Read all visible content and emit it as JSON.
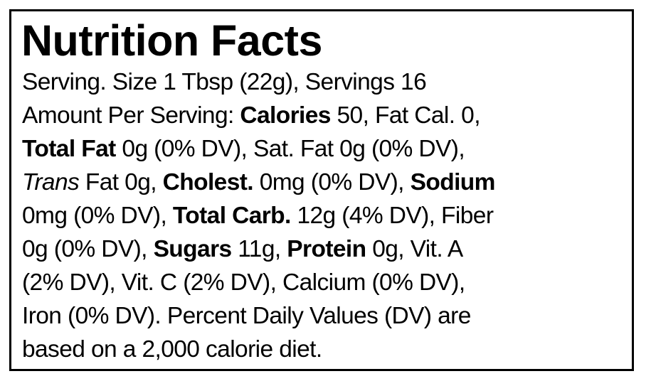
{
  "panel": {
    "title": "Nutrition Facts",
    "lines": [
      [
        {
          "text": "Serving. Size 1 Tbsp (22g), Servings 16",
          "style": "n"
        }
      ],
      [
        {
          "text": "Amount Per Serving: ",
          "style": "n"
        },
        {
          "text": "Calories",
          "style": "b"
        },
        {
          "text": " 50, Fat Cal. 0,",
          "style": "n"
        }
      ],
      [
        {
          "text": "Total Fat",
          "style": "b"
        },
        {
          "text": " 0g (0% DV), Sat. Fat 0g (0% DV),",
          "style": "n"
        }
      ],
      [
        {
          "text": "Trans",
          "style": "i"
        },
        {
          "text": " Fat 0g, ",
          "style": "n"
        },
        {
          "text": "Cholest.",
          "style": "b"
        },
        {
          "text": " 0mg (0% DV), ",
          "style": "n"
        },
        {
          "text": "Sodium",
          "style": "b"
        }
      ],
      [
        {
          "text": "0mg (0% DV), ",
          "style": "n"
        },
        {
          "text": "Total Carb.",
          "style": "b"
        },
        {
          "text": " 12g (4% DV), Fiber",
          "style": "n"
        }
      ],
      [
        {
          "text": "0g (0% DV), ",
          "style": "n"
        },
        {
          "text": "Sugars",
          "style": "b"
        },
        {
          "text": " 11g, ",
          "style": "n"
        },
        {
          "text": "Protein",
          "style": "b"
        },
        {
          "text": " 0g, Vit. A",
          "style": "n"
        }
      ],
      [
        {
          "text": "(2% DV), Vit. C (2% DV), Calcium (0% DV),",
          "style": "n"
        }
      ],
      [
        {
          "text": "Iron (0% DV). Percent Daily Values (DV) are",
          "style": "n"
        }
      ],
      [
        {
          "text": "based on a 2,000 calorie diet.",
          "style": "n"
        }
      ]
    ]
  }
}
